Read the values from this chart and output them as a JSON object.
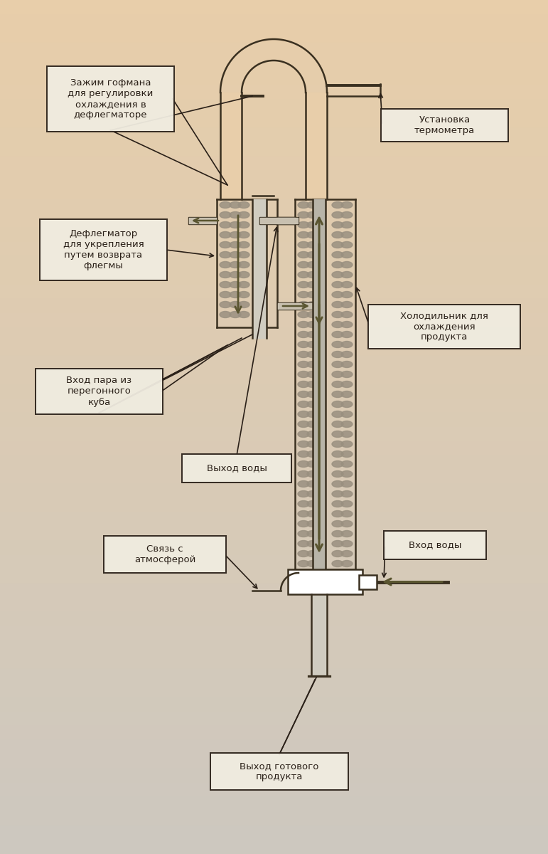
{
  "bg_color_top": "#e8ceaa",
  "bg_color_bottom": "#cdc8c0",
  "line_color": "#3a3020",
  "arrow_color": "#5a5530",
  "packing_color": "#9a9080",
  "inner_tube_color": "#6a6555",
  "box_fill": "#f0ece0",
  "box_edge": "#2a2018",
  "labels": {
    "zажим": "Зажим гофмана\nдля регулировки\nохлаждения в\nдефлегматоре",
    "термометр": "Установка\nтермометра",
    "дефлегматор": "Дефлегматор\nдля укрепления\nпутем возврата\nфлегмы",
    "холодильник": "Холодильник для\nохлаждения\nпродукта",
    "вход_пара": "Вход пара из\nперегонного\nкуба",
    "выход_воды": "Выход воды",
    "связь": "Связь с\nатмосферой",
    "вход_воды": "Вход воды",
    "выход_продукта": "Выход готового\nпродукта"
  }
}
